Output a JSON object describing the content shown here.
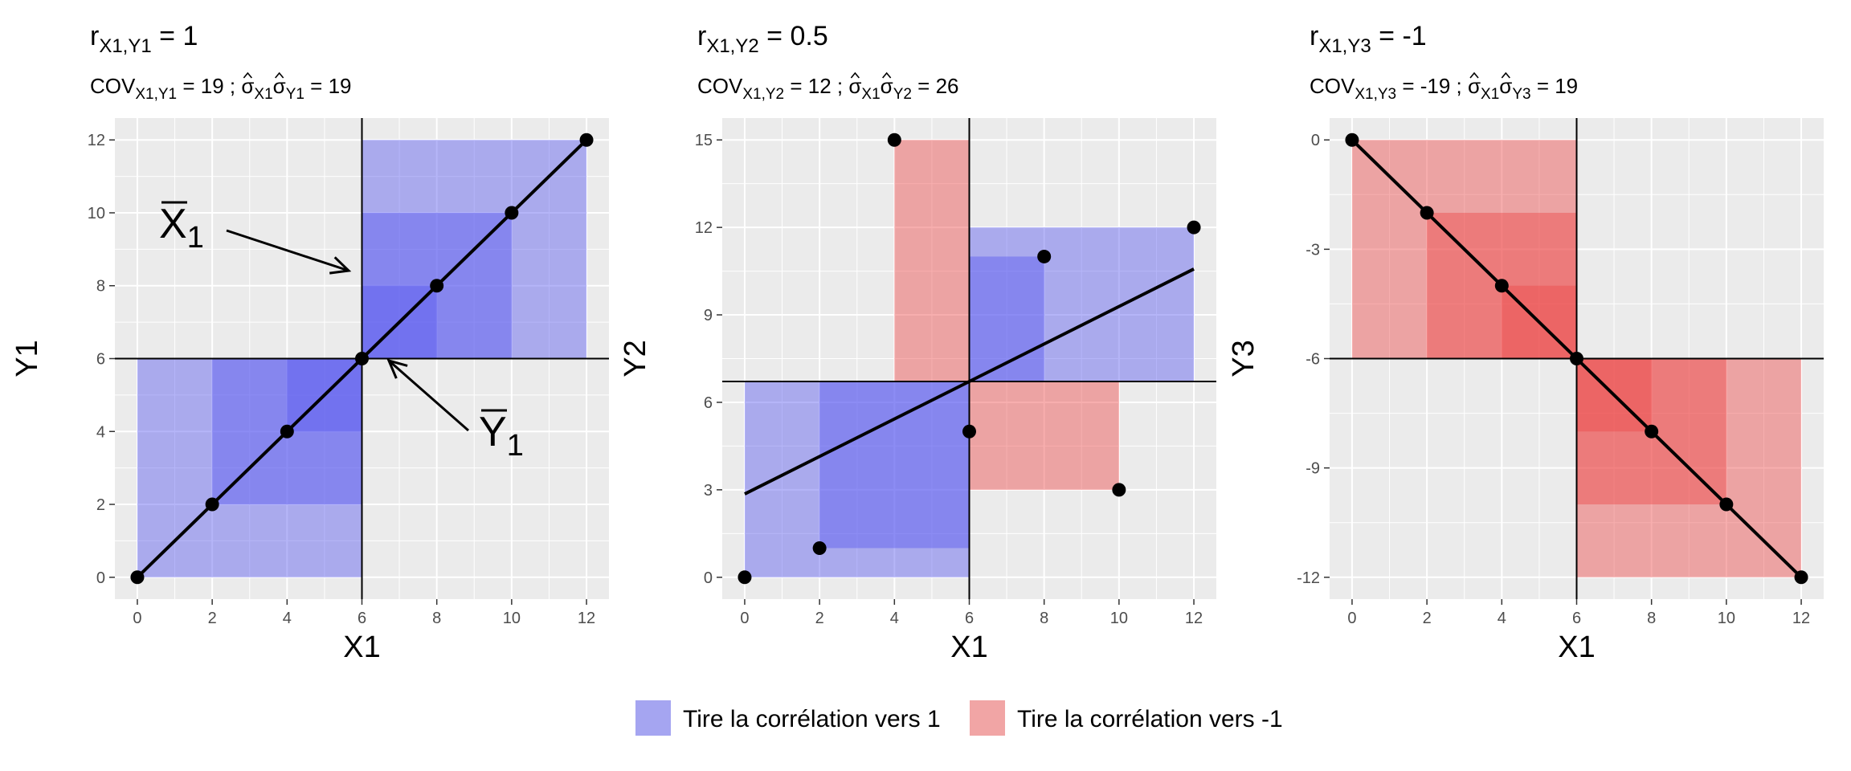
{
  "colors": {
    "positive": "#5b5bf0",
    "negative": "#ee4b4b",
    "panel_bg": "#ebebeb",
    "grid": "#ffffff",
    "ink": "#000000"
  },
  "legend": {
    "placement": "bottom",
    "items": [
      {
        "label": "Tire la corrélation vers 1",
        "color": "#a5a5f1"
      },
      {
        "label": "Tire la corrélation vers -1",
        "color": "#f1a5a5"
      }
    ]
  },
  "annotations": [
    {
      "base": "X",
      "sub": "1",
      "target": "mean-x"
    },
    {
      "base": "Y",
      "sub": "1",
      "target": "mean-y"
    }
  ],
  "chart_data": [
    {
      "type": "scatter",
      "title": {
        "base": "r",
        "sub": "X1,Y1",
        "rest": " = 1"
      },
      "subtitle": {
        "p1": "COV",
        "s1": "X1,Y1",
        "p2": " = 19 ; ",
        "p3": "σ",
        "s2": "X1",
        "p4": "σ",
        "s3": "Y1",
        "p5": " = 19"
      },
      "xlabel": "X1",
      "ylabel": "Y1",
      "xlim": [
        -0.6,
        12.6
      ],
      "ylim": [
        -0.6,
        12.6
      ],
      "xticks": [
        0,
        2,
        4,
        6,
        8,
        10,
        12
      ],
      "yticks": [
        0,
        2,
        4,
        6,
        8,
        10,
        12
      ],
      "x": [
        0,
        2,
        4,
        6,
        8,
        10,
        12
      ],
      "y": [
        0,
        2,
        4,
        6,
        8,
        10,
        12
      ],
      "mean_x": 6,
      "mean_y": 6,
      "fit": {
        "intercept": 0,
        "slope": 1
      }
    },
    {
      "type": "scatter",
      "title": {
        "base": "r",
        "sub": "X1,Y2",
        "rest": " = 0.5"
      },
      "subtitle": {
        "p1": "COV",
        "s1": "X1,Y2",
        "p2": " = 12 ; ",
        "p3": "σ",
        "s2": "X1",
        "p4": "σ",
        "s3": "Y2",
        "p5": " = 26"
      },
      "xlabel": "X1",
      "ylabel": "Y2",
      "xlim": [
        -0.6,
        12.6
      ],
      "ylim": [
        -0.75,
        15.75
      ],
      "xticks": [
        0,
        2,
        4,
        6,
        8,
        10,
        12
      ],
      "yticks": [
        0,
        3,
        6,
        9,
        12,
        15
      ],
      "x": [
        0,
        2,
        4,
        6,
        8,
        10,
        12
      ],
      "y": [
        0,
        1,
        15,
        5,
        11,
        3,
        12
      ],
      "mean_x": 6,
      "mean_y": 6.714,
      "fit": {
        "intercept": 2.857,
        "slope": 0.643
      }
    },
    {
      "type": "scatter",
      "title": {
        "base": "r",
        "sub": "X1,Y3",
        "rest": " = -1"
      },
      "subtitle": {
        "p1": "COV",
        "s1": "X1,Y3",
        "p2": " = -19 ; ",
        "p3": "σ",
        "s2": "X1",
        "p4": "σ",
        "s3": "Y3",
        "p5": " = 19"
      },
      "xlabel": "X1",
      "ylabel": "Y3",
      "xlim": [
        -0.6,
        12.6
      ],
      "ylim": [
        -12.6,
        0.6
      ],
      "xticks": [
        0,
        2,
        4,
        6,
        8,
        10,
        12
      ],
      "yticks": [
        0,
        -3,
        -6,
        -9,
        -12
      ],
      "x": [
        0,
        2,
        4,
        6,
        8,
        10,
        12
      ],
      "y": [
        0,
        -2,
        -4,
        -6,
        -8,
        -10,
        -12
      ],
      "mean_x": 6,
      "mean_y": -6,
      "fit": {
        "intercept": 0,
        "slope": -1
      }
    }
  ]
}
